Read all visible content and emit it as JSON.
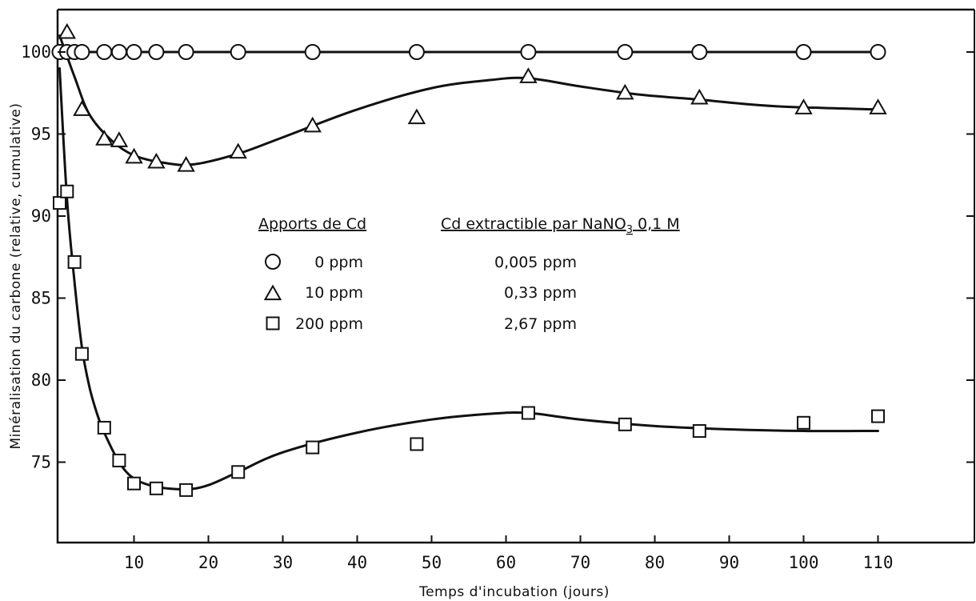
{
  "chart_data": {
    "type": "scatter",
    "xlabel": "Temps d'incubation (jours)",
    "ylabel": "Minéralisation du carbone (relative, cumulative)",
    "xlim": [
      0,
      113
    ],
    "ylim": [
      70,
      105
    ],
    "xticks": [
      10,
      20,
      30,
      40,
      50,
      60,
      70,
      80,
      90,
      100,
      110
    ],
    "yticks": [
      75,
      80,
      85,
      90,
      95,
      100
    ],
    "grid": false,
    "legend_position": "center",
    "legend": {
      "header_left": "Apports de Cd",
      "header_right": "Cd extractible par NaNO",
      "header_right_sub": "3",
      "header_right_tail": " 0,1 M",
      "entries": [
        {
          "marker": "circle",
          "dose": "0 ppm",
          "extractible": "0,005 ppm"
        },
        {
          "marker": "triangle",
          "dose": "10 ppm",
          "extractible": "0,33 ppm"
        },
        {
          "marker": "square",
          "dose": "200 ppm",
          "extractible": "2,67 ppm"
        }
      ]
    },
    "series": [
      {
        "marker": "circle",
        "points": [
          [
            0,
            100
          ],
          [
            1,
            100
          ],
          [
            2,
            100
          ],
          [
            3,
            100
          ],
          [
            6,
            100
          ],
          [
            8,
            100
          ],
          [
            10,
            100
          ],
          [
            13,
            100
          ],
          [
            17,
            100
          ],
          [
            24,
            100
          ],
          [
            34,
            100
          ],
          [
            48,
            100
          ],
          [
            63,
            100
          ],
          [
            76,
            100
          ],
          [
            86,
            100
          ],
          [
            100,
            100
          ],
          [
            110,
            100
          ]
        ],
        "curve": [
          [
            0,
            100
          ],
          [
            20,
            100
          ],
          [
            60,
            100
          ],
          [
            110,
            100
          ]
        ]
      },
      {
        "marker": "triangle",
        "points": [
          [
            1,
            101.2
          ],
          [
            3,
            96.5
          ],
          [
            6,
            94.7
          ],
          [
            8,
            94.6
          ],
          [
            10,
            93.6
          ],
          [
            13,
            93.3
          ],
          [
            17,
            93.1
          ],
          [
            24,
            93.9
          ],
          [
            34,
            95.5
          ],
          [
            48,
            96
          ],
          [
            63,
            98.5
          ],
          [
            76,
            97.5
          ],
          [
            86,
            97.2
          ],
          [
            100,
            96.6
          ],
          [
            110,
            96.6
          ]
        ],
        "curve": [
          [
            0,
            101
          ],
          [
            2,
            98.5
          ],
          [
            4,
            96.2
          ],
          [
            7,
            94.6
          ],
          [
            10,
            93.7
          ],
          [
            14,
            93.25
          ],
          [
            18,
            93.15
          ],
          [
            24,
            93.8
          ],
          [
            30,
            94.8
          ],
          [
            40,
            96.5
          ],
          [
            50,
            97.8
          ],
          [
            58,
            98.3
          ],
          [
            63,
            98.4
          ],
          [
            70,
            97.9
          ],
          [
            78,
            97.4
          ],
          [
            86,
            97.1
          ],
          [
            96,
            96.7
          ],
          [
            110,
            96.5
          ]
        ]
      },
      {
        "marker": "square",
        "points": [
          [
            0,
            90.8
          ],
          [
            1,
            91.5
          ],
          [
            2,
            87.2
          ],
          [
            3,
            81.6
          ],
          [
            6,
            77.1
          ],
          [
            8,
            75.1
          ],
          [
            10,
            73.7
          ],
          [
            13,
            73.4
          ],
          [
            17,
            73.3
          ],
          [
            24,
            74.4
          ],
          [
            34,
            75.9
          ],
          [
            48,
            76.1
          ],
          [
            63,
            78
          ],
          [
            76,
            77.3
          ],
          [
            86,
            76.9
          ],
          [
            100,
            77.4
          ],
          [
            110,
            77.8
          ]
        ],
        "curve": [
          [
            0,
            99
          ],
          [
            1,
            91
          ],
          [
            2,
            86
          ],
          [
            3,
            82
          ],
          [
            4,
            79.6
          ],
          [
            5,
            78
          ],
          [
            6,
            76.8
          ],
          [
            8,
            75
          ],
          [
            10,
            74
          ],
          [
            13,
            73.5
          ],
          [
            17,
            73.35
          ],
          [
            20,
            73.6
          ],
          [
            24,
            74.4
          ],
          [
            30,
            75.6
          ],
          [
            40,
            76.8
          ],
          [
            50,
            77.6
          ],
          [
            58,
            77.95
          ],
          [
            63,
            78
          ],
          [
            70,
            77.6
          ],
          [
            80,
            77.2
          ],
          [
            90,
            77
          ],
          [
            100,
            76.9
          ],
          [
            110,
            76.9
          ]
        ]
      }
    ]
  }
}
